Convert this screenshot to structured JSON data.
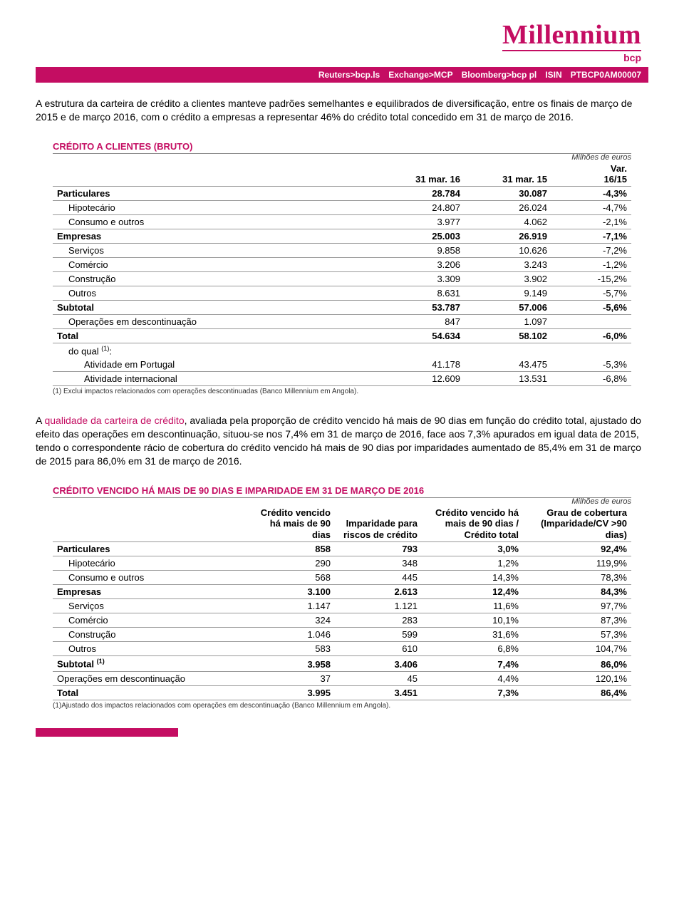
{
  "brand": {
    "name": "Millennium",
    "sub": "bcp",
    "color": "#c40d62"
  },
  "ticker": {
    "items": [
      "Reuters>bcp.ls",
      "Exchange>MCP",
      "Bloomberg>bcp pl",
      "ISIN",
      "PTBCP0AM00007"
    ]
  },
  "para1": {
    "text": "A estrutura da carteira de crédito a clientes manteve padrões semelhantes e equilibrados de diversificação, entre os finais de março de 2015 e de março 2016, com o crédito a empresas a representar 46% do crédito total concedido em 31 de março de 2016."
  },
  "table1": {
    "title": "CRÉDITO A CLIENTES (BRUTO)",
    "unit": "Milhões de euros",
    "headers": [
      "",
      "31 mar. 16",
      "31 mar. 15",
      "Var. 16/15"
    ],
    "rows": [
      {
        "label": "Particulares",
        "c": [
          "28.784",
          "30.087",
          "-4,3%"
        ],
        "bold": true,
        "indent": 0
      },
      {
        "label": "Hipotecário",
        "c": [
          "24.807",
          "26.024",
          "-4,7%"
        ],
        "indent": 1
      },
      {
        "label": "Consumo e outros",
        "c": [
          "3.977",
          "4.062",
          "-2,1%"
        ],
        "indent": 1
      },
      {
        "label": "Empresas",
        "c": [
          "25.003",
          "26.919",
          "-7,1%"
        ],
        "bold": true,
        "indent": 0
      },
      {
        "label": "Serviços",
        "c": [
          "9.858",
          "10.626",
          "-7,2%"
        ],
        "indent": 1
      },
      {
        "label": "Comércio",
        "c": [
          "3.206",
          "3.243",
          "-1,2%"
        ],
        "indent": 1
      },
      {
        "label": "Construção",
        "c": [
          "3.309",
          "3.902",
          "-15,2%"
        ],
        "indent": 1
      },
      {
        "label": "Outros",
        "c": [
          "8.631",
          "9.149",
          "-5,7%"
        ],
        "indent": 1
      },
      {
        "label": "Subtotal",
        "c": [
          "53.787",
          "57.006",
          "-5,6%"
        ],
        "bold": true,
        "indent": 0
      },
      {
        "label": "Operações em descontinuação",
        "c": [
          "847",
          "1.097",
          ""
        ],
        "indent": 1
      },
      {
        "label": "Total",
        "c": [
          "54.634",
          "58.102",
          "-6,0%"
        ],
        "bold": true,
        "indent": 0
      },
      {
        "label": "do qual ",
        "sup": "(1)",
        "suffix": ":",
        "c": [
          "",
          "",
          ""
        ],
        "indent": 1,
        "noborder": true
      },
      {
        "label": "Atividade em Portugal",
        "c": [
          "41.178",
          "43.475",
          "-5,3%"
        ],
        "indent": 2
      },
      {
        "label": "Atividade internacional",
        "c": [
          "12.609",
          "13.531",
          "-6,8%"
        ],
        "indent": 2
      }
    ],
    "footnote": "(1) Exclui impactos relacionados com operações descontinuadas (Banco Millennium em Angola)."
  },
  "para2": {
    "pre": "A ",
    "hl": "qualidade da carteira de crédito",
    "post": ", avaliada pela proporção de crédito vencido há mais de 90 dias em função do crédito total, ajustado do efeito das operações em descontinuação, situou-se nos 7,4% em 31 de março de 2016, face aos 7,3% apurados em igual data de 2015, tendo o correspondente rácio de cobertura do crédito vencido há mais de 90 dias por imparidades aumentado de 85,4% em 31 de março de 2015 para 86,0% em 31 de março de 2016."
  },
  "table2": {
    "title": "CRÉDITO VENCIDO HÁ MAIS DE 90 DIAS E IMPARIDADE EM 31 DE MARÇO DE 2016",
    "unit": "Milhões de euros",
    "headers": [
      "",
      "Crédito vencido há mais de 90 dias",
      "Imparidade para riscos de crédito",
      "Crédito vencido há mais de 90 dias / Crédito total",
      "Grau de cobertura (Imparidade/CV >90 dias)"
    ],
    "rows": [
      {
        "label": "Particulares",
        "c": [
          "858",
          "793",
          "3,0%",
          "92,4%"
        ],
        "bold": true,
        "indent": 0
      },
      {
        "label": "Hipotecário",
        "c": [
          "290",
          "348",
          "1,2%",
          "119,9%"
        ],
        "indent": 1
      },
      {
        "label": "Consumo e outros",
        "c": [
          "568",
          "445",
          "14,3%",
          "78,3%"
        ],
        "indent": 1
      },
      {
        "label": "Empresas",
        "c": [
          "3.100",
          "2.613",
          "12,4%",
          "84,3%"
        ],
        "bold": true,
        "indent": 0
      },
      {
        "label": "Serviços",
        "c": [
          "1.147",
          "1.121",
          "11,6%",
          "97,7%"
        ],
        "indent": 1
      },
      {
        "label": "Comércio",
        "c": [
          "324",
          "283",
          "10,1%",
          "87,3%"
        ],
        "indent": 1
      },
      {
        "label": "Construção",
        "c": [
          "1.046",
          "599",
          "31,6%",
          "57,3%"
        ],
        "indent": 1
      },
      {
        "label": "Outros",
        "c": [
          "583",
          "610",
          "6,8%",
          "104,7%"
        ],
        "indent": 1
      },
      {
        "label": "Subtotal ",
        "sup": "(1)",
        "c": [
          "3.958",
          "3.406",
          "7,4%",
          "86,0%"
        ],
        "bold": true,
        "indent": 0
      },
      {
        "label": "Operações em descontinuação",
        "c": [
          "37",
          "45",
          "4,4%",
          "120,1%"
        ],
        "indent": 0
      },
      {
        "label": "Total",
        "c": [
          "3.995",
          "3.451",
          "7,3%",
          "86,4%"
        ],
        "bold": true,
        "indent": 0
      }
    ],
    "footnote": "(1)Ajustado dos impactos relacionados com operações em descontinuação (Banco Millennium em Angola)."
  }
}
